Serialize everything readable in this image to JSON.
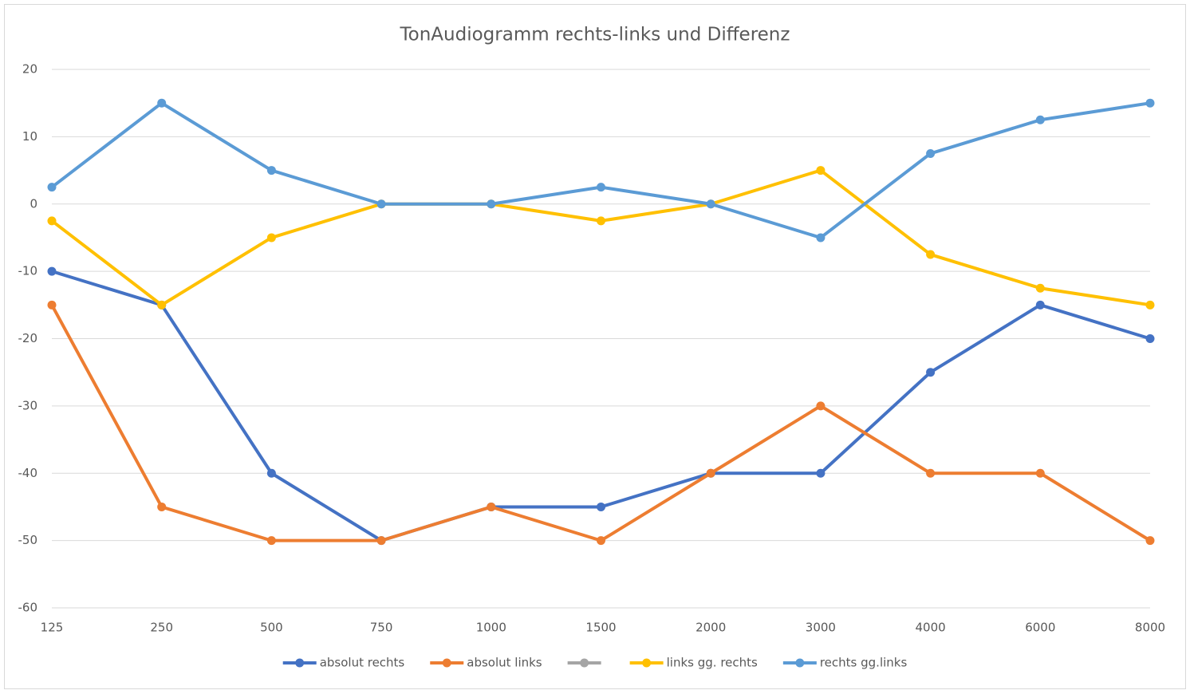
{
  "chart_data": {
    "type": "line",
    "title": "TonAudiogramm  rechts-links und Differenz",
    "categories": [
      "125",
      "250",
      "500",
      "750",
      "1000",
      "1500",
      "2000",
      "3000",
      "4000",
      "6000",
      "8000"
    ],
    "series": [
      {
        "name": "absolut rechts",
        "color": "#4472c4",
        "values": [
          -10,
          -15,
          -40,
          -50,
          -45,
          -45,
          -40,
          -40,
          -25,
          -15,
          -20
        ]
      },
      {
        "name": "absolut links",
        "color": "#ed7d31",
        "values": [
          -15,
          -45,
          -50,
          -50,
          -45,
          -50,
          -40,
          -30,
          -40,
          -40,
          -50
        ]
      },
      {
        "color": "#a5a5a5",
        "values": [
          null,
          null,
          null,
          null,
          null,
          null,
          null,
          null,
          null,
          null,
          null
        ]
      },
      {
        "name": "links gg. rechts",
        "color": "#ffc000",
        "values": [
          -2.5,
          -15,
          -5,
          0,
          0,
          -2.5,
          0,
          5,
          -7.5,
          -12.5,
          -15
        ]
      },
      {
        "name": "rechts gg.links",
        "color": "#5b9bd5",
        "values": [
          2.5,
          15,
          5,
          0,
          0,
          2.5,
          0,
          -5,
          7.5,
          12.5,
          15
        ]
      }
    ],
    "ylim": [
      -60,
      20
    ],
    "yticks": [
      -60,
      -50,
      -40,
      -30,
      -20,
      -10,
      0,
      10,
      20
    ],
    "grid": true,
    "legend": "bottom"
  }
}
